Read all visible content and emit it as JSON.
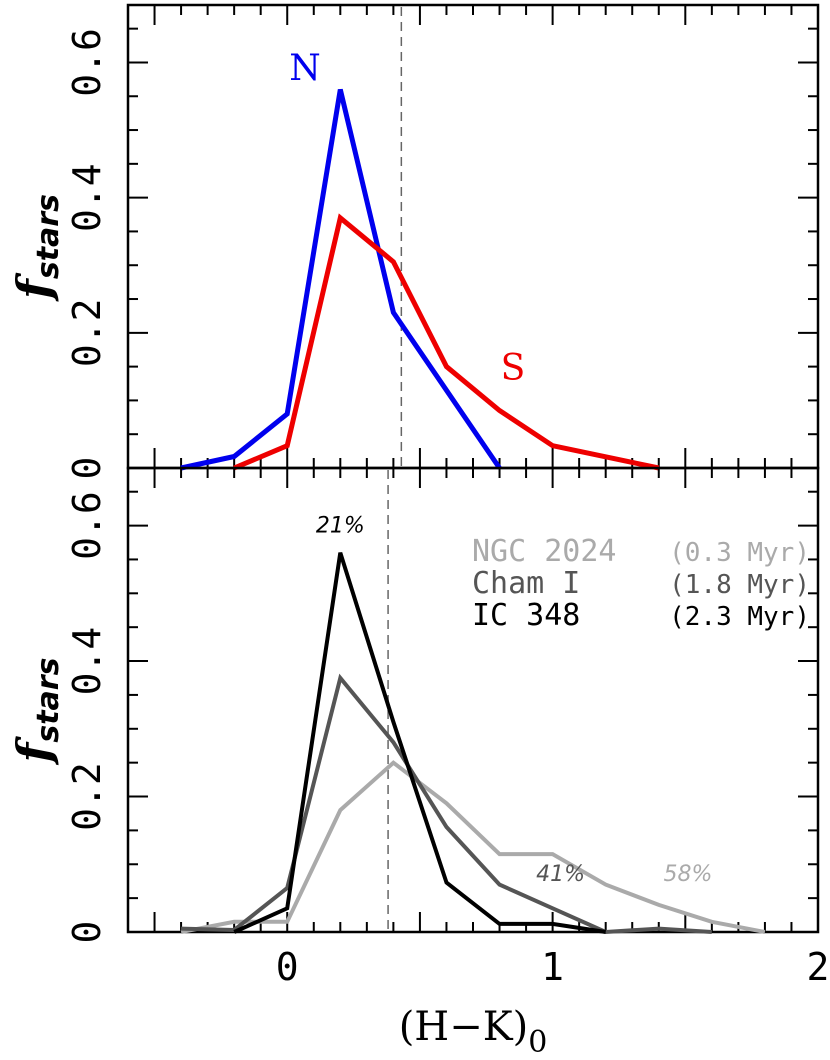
{
  "chart_data": [
    {
      "type": "line",
      "panel": "top",
      "ylabel_main": "f",
      "ylabel_sub": "stars",
      "xlim": [
        -0.6,
        2.0
      ],
      "ylim": [
        0,
        0.6
      ],
      "yticks": [
        "0",
        "0.2",
        "0.4",
        "0.6"
      ],
      "vline_x": 0.43,
      "series": [
        {
          "name": "N",
          "color": "#0000ee",
          "points": [
            [
              -0.4,
              0.0
            ],
            [
              -0.2,
              0.017
            ],
            [
              0.0,
              0.08
            ],
            [
              0.2,
              0.56
            ],
            [
              0.4,
              0.23
            ],
            [
              0.8,
              0.0
            ]
          ]
        },
        {
          "name": "S",
          "color": "#ee0000",
          "points": [
            [
              -0.2,
              0.0
            ],
            [
              0.0,
              0.033
            ],
            [
              0.2,
              0.37
            ],
            [
              0.4,
              0.305
            ],
            [
              0.6,
              0.15
            ],
            [
              0.8,
              0.085
            ],
            [
              1.0,
              0.033
            ],
            [
              1.4,
              0.0
            ]
          ]
        }
      ]
    },
    {
      "type": "line",
      "panel": "bottom",
      "ylabel_main": "f",
      "ylabel_sub": "stars",
      "xlabel_main": "(H−K)",
      "xlabel_sub": "0",
      "xlim": [
        -0.6,
        2.0
      ],
      "ylim": [
        0,
        0.6
      ],
      "xticks": [
        "0",
        "1",
        "2"
      ],
      "yticks": [
        "0",
        "0.2",
        "0.4",
        "0.6"
      ],
      "vline_x": 0.38,
      "series": [
        {
          "name": "NGC 2024",
          "age": "(0.3 Myr)",
          "color": "#aaaaaa",
          "points": [
            [
              -0.4,
              0.0
            ],
            [
              -0.2,
              0.015
            ],
            [
              0.0,
              0.015
            ],
            [
              0.2,
              0.18
            ],
            [
              0.4,
              0.25
            ],
            [
              0.6,
              0.19
            ],
            [
              0.8,
              0.115
            ],
            [
              1.0,
              0.115
            ],
            [
              1.2,
              0.07
            ],
            [
              1.4,
              0.04
            ],
            [
              1.6,
              0.015
            ],
            [
              1.8,
              0.0
            ]
          ]
        },
        {
          "name": "Cham I",
          "age": "(1.8 Myr)",
          "color": "#555555",
          "points": [
            [
              -0.4,
              0.005
            ],
            [
              -0.2,
              0.003
            ],
            [
              0.0,
              0.065
            ],
            [
              0.2,
              0.375
            ],
            [
              0.4,
              0.28
            ],
            [
              0.6,
              0.155
            ],
            [
              0.8,
              0.07
            ],
            [
              1.0,
              0.035
            ],
            [
              1.2,
              0.0
            ],
            [
              1.4,
              0.005
            ],
            [
              1.6,
              0.0
            ]
          ]
        },
        {
          "name": "IC 348",
          "age": "(2.3 Myr)",
          "color": "#000000",
          "points": [
            [
              -0.2,
              0.0
            ],
            [
              0.0,
              0.035
            ],
            [
              0.2,
              0.56
            ],
            [
              0.4,
              0.31
            ],
            [
              0.6,
              0.073
            ],
            [
              0.8,
              0.012
            ],
            [
              1.0,
              0.012
            ],
            [
              1.2,
              0.0
            ]
          ]
        }
      ],
      "annotations": [
        {
          "text": "21%",
          "color": "#000000",
          "x": 0.2,
          "y": 0.59
        },
        {
          "text": "41%",
          "color": "#555555",
          "x": 1.03,
          "y": 0.075
        },
        {
          "text": "58%",
          "color": "#aaaaaa",
          "x": 1.51,
          "y": 0.075
        }
      ]
    }
  ]
}
